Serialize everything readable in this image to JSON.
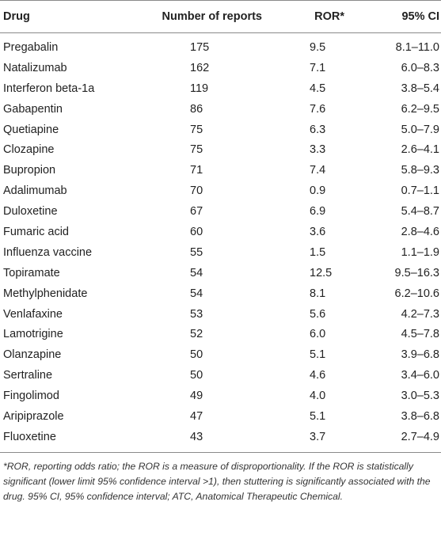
{
  "table": {
    "headers": {
      "drug": "Drug",
      "reports": "Number of reports",
      "ror": "ROR*",
      "ci": "95% CI"
    },
    "rows": [
      {
        "drug": "Pregabalin",
        "reports": "175",
        "ror": "9.5",
        "ci": "8.1–11.0"
      },
      {
        "drug": "Natalizumab",
        "reports": "162",
        "ror": "7.1",
        "ci": "6.0–8.3"
      },
      {
        "drug": "Interferon beta-1a",
        "reports": "119",
        "ror": "4.5",
        "ci": "3.8–5.4"
      },
      {
        "drug": "Gabapentin",
        "reports": "86",
        "ror": "7.6",
        "ci": "6.2–9.5"
      },
      {
        "drug": "Quetiapine",
        "reports": "75",
        "ror": "6.3",
        "ci": "5.0–7.9"
      },
      {
        "drug": "Clozapine",
        "reports": "75",
        "ror": "3.3",
        "ci": "2.6–4.1"
      },
      {
        "drug": "Bupropion",
        "reports": "71",
        "ror": "7.4",
        "ci": "5.8–9.3"
      },
      {
        "drug": "Adalimumab",
        "reports": "70",
        "ror": "0.9",
        "ci": "0.7–1.1"
      },
      {
        "drug": "Duloxetine",
        "reports": "67",
        "ror": "6.9",
        "ci": "5.4–8.7"
      },
      {
        "drug": "Fumaric acid",
        "reports": "60",
        "ror": "3.6",
        "ci": "2.8–4.6"
      },
      {
        "drug": "Influenza vaccine",
        "reports": "55",
        "ror": "1.5",
        "ci": "1.1–1.9"
      },
      {
        "drug": "Topiramate",
        "reports": "54",
        "ror": "12.5",
        "ci": "9.5–16.3"
      },
      {
        "drug": "Methylphenidate",
        "reports": "54",
        "ror": "8.1",
        "ci": "6.2–10.6"
      },
      {
        "drug": "Venlafaxine",
        "reports": "53",
        "ror": "5.6",
        "ci": "4.2–7.3"
      },
      {
        "drug": "Lamotrigine",
        "reports": "52",
        "ror": "6.0",
        "ci": "4.5–7.8"
      },
      {
        "drug": "Olanzapine",
        "reports": "50",
        "ror": "5.1",
        "ci": "3.9–6.8"
      },
      {
        "drug": "Sertraline",
        "reports": "50",
        "ror": "4.6",
        "ci": "3.4–6.0"
      },
      {
        "drug": "Fingolimod",
        "reports": "49",
        "ror": "4.0",
        "ci": "3.0–5.3"
      },
      {
        "drug": "Aripiprazole",
        "reports": "47",
        "ror": "5.1",
        "ci": "3.8–6.8"
      },
      {
        "drug": "Fluoxetine",
        "reports": "43",
        "ror": "3.7",
        "ci": "2.7–4.9"
      }
    ]
  },
  "footnote": "*ROR, reporting odds ratio; the ROR is a measure of disproportionality. If the ROR is statistically significant (lower limit 95% confidence interval >1), then stuttering is significantly associated with the drug. 95% CI, 95% confidence interval; ATC, Anatomical Therapeutic Chemical."
}
